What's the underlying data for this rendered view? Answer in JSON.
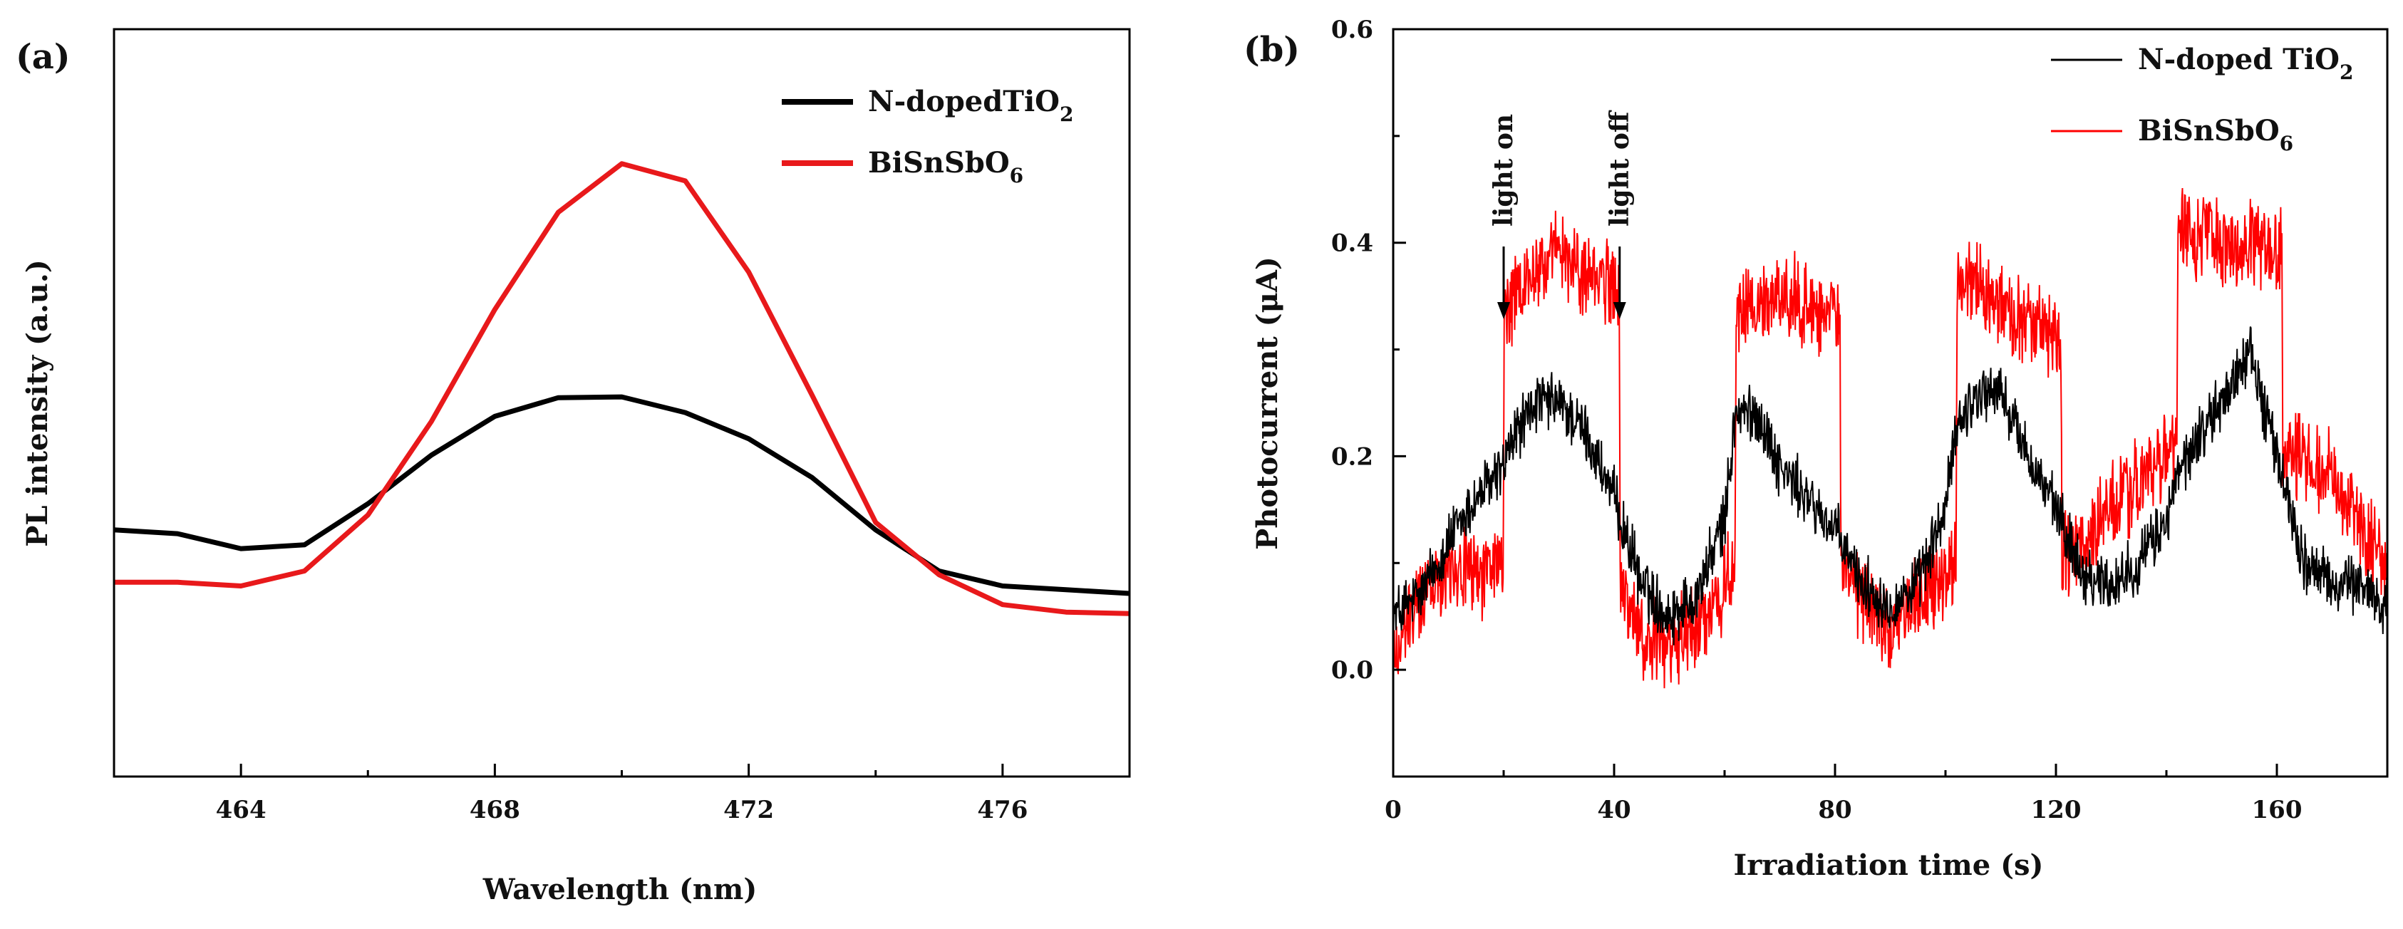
{
  "chart_data": [
    {
      "panel_label": "(a)",
      "type": "line",
      "xlabel": "Wavelength (nm)",
      "ylabel": "PL intensity (a.u.)",
      "xlim": [
        462,
        478
      ],
      "ylim": [
        0,
        10
      ],
      "xticks": [
        464,
        468,
        472,
        476
      ],
      "xtick_labels": [
        "464",
        "468",
        "472",
        "476"
      ],
      "y_ticks_shown": false,
      "legend_position": "top-right",
      "series": [
        {
          "name": "N-dopedTiO",
          "subscript": "2",
          "color": "#000000",
          "x": [
            462,
            463,
            464,
            465,
            466,
            467,
            468,
            469,
            470,
            471,
            472,
            473,
            474,
            475,
            476,
            477,
            478
          ],
          "y": [
            3.3,
            3.25,
            3.05,
            3.1,
            3.65,
            4.3,
            4.82,
            5.07,
            5.08,
            4.87,
            4.52,
            4.0,
            3.3,
            2.75,
            2.55,
            2.5,
            2.45
          ]
        },
        {
          "name": "BiSnSbO",
          "subscript": "6",
          "color": "#e8191b",
          "x": [
            462,
            463,
            464,
            465,
            466,
            467,
            468,
            469,
            470,
            471,
            472,
            473,
            474,
            475,
            476,
            477,
            478
          ],
          "y": [
            2.6,
            2.6,
            2.55,
            2.75,
            3.5,
            4.75,
            6.25,
            7.55,
            8.2,
            7.97,
            6.75,
            5.1,
            3.4,
            2.7,
            2.3,
            2.2,
            2.18
          ]
        }
      ]
    },
    {
      "panel_label": "(b)",
      "type": "line",
      "xlabel": "Irradiation time (s)",
      "ylabel_main": "Photocurrent (",
      "ylabel_unit": "μA",
      "ylabel_close": ")",
      "xlim": [
        0,
        180
      ],
      "ylim": [
        -0.1,
        0.6
      ],
      "xticks": [
        0,
        40,
        80,
        120,
        160
      ],
      "xtick_labels": [
        "0",
        "40",
        "80",
        "120",
        "160"
      ],
      "yticks": [
        0.0,
        0.2,
        0.4,
        0.6
      ],
      "ytick_labels": [
        "0.0",
        "0.2",
        "0.4",
        "0.6"
      ],
      "legend_position": "top-right",
      "annotations": [
        {
          "text": "light on",
          "x": 20
        },
        {
          "text": "light off",
          "x": 41
        }
      ],
      "series": [
        {
          "name": "N-doped TiO",
          "subscript": "2",
          "color": "#000000",
          "noise": 0.022,
          "x": [
            0,
            5,
            10,
            15,
            20,
            22,
            26,
            30,
            35,
            40,
            45,
            50,
            55,
            60,
            62,
            66,
            70,
            75,
            80,
            85,
            90,
            95,
            100,
            102,
            106,
            110,
            115,
            120,
            125,
            130,
            135,
            140,
            142,
            146,
            150,
            155,
            160,
            165,
            170,
            175,
            180
          ],
          "y": [
            0.05,
            0.07,
            0.12,
            0.16,
            0.19,
            0.22,
            0.25,
            0.25,
            0.22,
            0.16,
            0.08,
            0.05,
            0.07,
            0.14,
            0.24,
            0.24,
            0.19,
            0.16,
            0.13,
            0.08,
            0.06,
            0.08,
            0.15,
            0.23,
            0.26,
            0.26,
            0.2,
            0.15,
            0.09,
            0.08,
            0.1,
            0.14,
            0.18,
            0.22,
            0.25,
            0.3,
            0.2,
            0.1,
            0.08,
            0.08,
            0.06
          ]
        },
        {
          "name": "BiSnSbO",
          "subscript": "6",
          "color": "#ff0000",
          "noise": 0.032,
          "x": [
            0,
            5,
            10,
            15,
            19.9,
            20.1,
            25,
            30,
            35,
            40,
            40.9,
            41.1,
            45,
            50,
            55,
            60,
            61.9,
            62.1,
            70,
            80,
            80.9,
            81.1,
            90,
            100,
            101.9,
            102.1,
            110,
            120,
            120.9,
            121.1,
            130,
            140,
            141.9,
            142.1,
            150,
            160,
            160.9,
            161.1,
            170,
            180
          ],
          "y": [
            0.01,
            0.07,
            0.1,
            0.09,
            0.1,
            0.33,
            0.37,
            0.39,
            0.37,
            0.36,
            0.35,
            0.08,
            0.03,
            0.02,
            0.04,
            0.08,
            0.09,
            0.33,
            0.35,
            0.33,
            0.32,
            0.09,
            0.04,
            0.09,
            0.1,
            0.37,
            0.34,
            0.31,
            0.3,
            0.1,
            0.15,
            0.2,
            0.21,
            0.41,
            0.4,
            0.4,
            0.39,
            0.21,
            0.18,
            0.09
          ]
        }
      ]
    }
  ]
}
